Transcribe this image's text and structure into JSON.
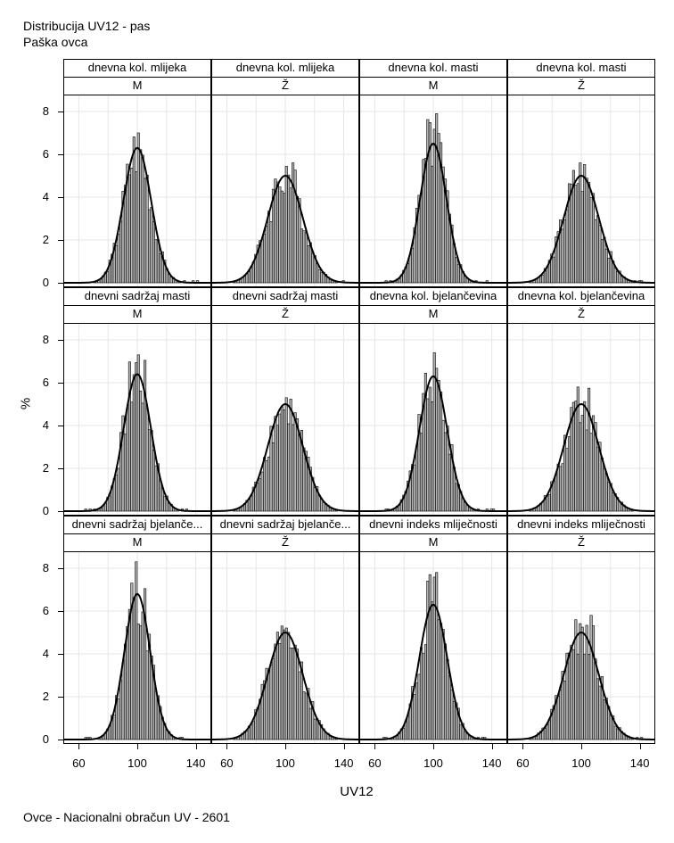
{
  "header": {
    "line1": "Distribucija UV12 - pas",
    "line2": "Paška ovca"
  },
  "footer": {
    "text": "Ovce - Nacionalni obračun UV - 2601"
  },
  "colors": {
    "bar_fill": "#b4b4b4",
    "bar_stroke": "#000000",
    "curve": "#000000",
    "grid": "#e6e6e6"
  },
  "chart_data": {
    "type": "bar",
    "title": "Distribucija UV12 - pas",
    "xlabel": "UV12",
    "ylabel": "%",
    "xlim": [
      50,
      150
    ],
    "ylim": [
      0,
      8.5
    ],
    "xticks": [
      "60",
      "100",
      "140"
    ],
    "yticks": [
      "0",
      "2",
      "4",
      "6",
      "8"
    ],
    "panels": [
      {
        "trait": "dnevna kol. mlijeka",
        "sex": "M",
        "mean": 100,
        "peak": 6.3,
        "sd": 9.5,
        "max_bar": 7.0
      },
      {
        "trait": "dnevna kol. mlijeka",
        "sex": "Ž",
        "mean": 100,
        "peak": 5.0,
        "sd": 12.0,
        "max_bar": 5.6
      },
      {
        "trait": "dnevna kol. masti",
        "sex": "M",
        "mean": 100,
        "peak": 6.5,
        "sd": 9.0,
        "max_bar": 7.9
      },
      {
        "trait": "dnevna kol. masti",
        "sex": "Ž",
        "mean": 100,
        "peak": 5.0,
        "sd": 12.0,
        "max_bar": 5.6
      },
      {
        "trait": "dnevni sadržaj masti",
        "sex": "M",
        "mean": 100,
        "peak": 6.4,
        "sd": 9.3,
        "max_bar": 7.3
      },
      {
        "trait": "dnevni sadržaj masti",
        "sex": "Ž",
        "mean": 100,
        "peak": 5.0,
        "sd": 12.0,
        "max_bar": 5.3
      },
      {
        "trait": "dnevna kol. bjelančevina",
        "sex": "M",
        "mean": 100,
        "peak": 6.3,
        "sd": 9.5,
        "max_bar": 7.4
      },
      {
        "trait": "dnevna kol. bjelančevina",
        "sex": "Ž",
        "mean": 100,
        "peak": 5.0,
        "sd": 12.0,
        "max_bar": 5.8
      },
      {
        "trait": "dnevni sadržaj bjelanče...",
        "sex": "M",
        "mean": 100,
        "peak": 6.8,
        "sd": 8.8,
        "max_bar": 8.3
      },
      {
        "trait": "dnevni sadržaj bjelanče...",
        "sex": "Ž",
        "mean": 100,
        "peak": 5.0,
        "sd": 12.0,
        "max_bar": 5.3
      },
      {
        "trait": "dnevni indeks mliječnosti",
        "sex": "M",
        "mean": 100,
        "peak": 6.3,
        "sd": 9.5,
        "max_bar": 7.8
      },
      {
        "trait": "dnevni indeks mliječnosti",
        "sex": "Ž",
        "mean": 100,
        "peak": 5.0,
        "sd": 12.0,
        "max_bar": 5.8
      }
    ]
  }
}
